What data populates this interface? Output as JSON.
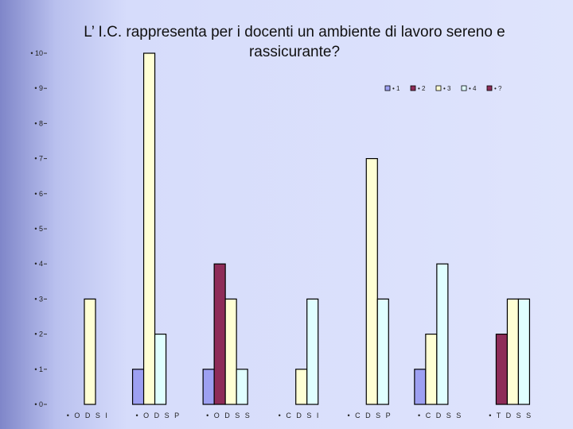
{
  "chart_data": {
    "type": "bar",
    "title": "L’ I.C. rappresenta per i docenti un ambiente di lavoro sereno e rassicurante?",
    "xlabel": "",
    "ylabel": "",
    "ylim": [
      0,
      10
    ],
    "yticks": [
      "• 0",
      "• 1",
      "• 2",
      "• 3",
      "• 4",
      "• 5",
      "• 6",
      "• 7",
      "• 8",
      "• 9",
      "• 10"
    ],
    "categories": [
      "• O D S I",
      "• O D S P",
      "• O D S S",
      "• C D S I",
      "• C D S P",
      "• C D S S",
      "• T D S S"
    ],
    "legend_position": "top-right",
    "grid": false,
    "series": [
      {
        "name": "• 1",
        "color": "#9da0f2",
        "values": [
          0,
          1,
          1,
          0,
          0,
          1,
          0
        ]
      },
      {
        "name": "• 2",
        "color": "#8e2c58",
        "values": [
          0,
          0,
          4,
          0,
          0,
          0,
          2
        ]
      },
      {
        "name": "• 3",
        "color": "#ffffd4",
        "values": [
          3,
          10,
          3,
          1,
          7,
          2,
          3
        ]
      },
      {
        "name": "• 4",
        "color": "#e0ffff",
        "values": [
          0,
          2,
          1,
          3,
          3,
          4,
          3
        ]
      },
      {
        "name": "• ?",
        "color": "#8e2c58",
        "values": [
          0,
          0,
          0,
          0,
          0,
          0,
          0
        ]
      }
    ]
  }
}
